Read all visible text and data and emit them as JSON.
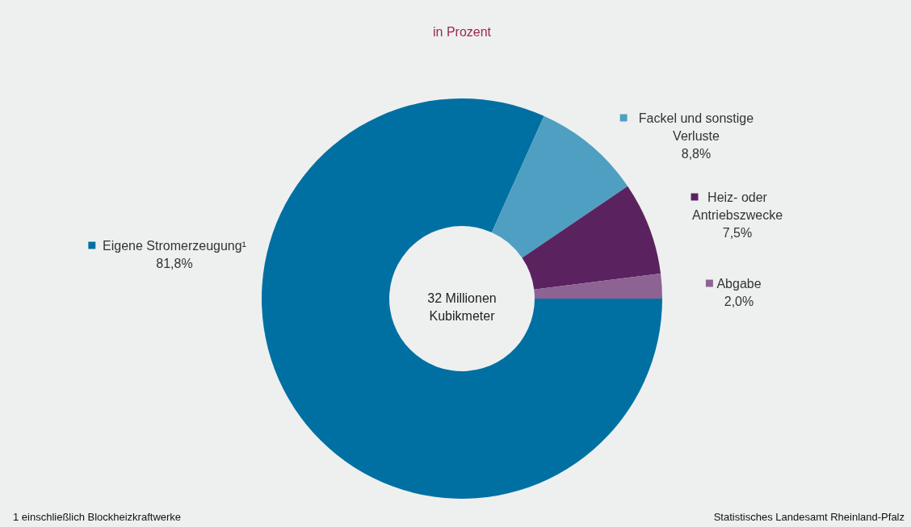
{
  "chart_data": {
    "type": "donut",
    "title": "in Prozent",
    "categories": [
      "Eigene Stromerzeugung¹",
      "Fackel und sonstige Verluste",
      "Heiz- oder Antriebszwecke",
      "Abgabe"
    ],
    "values": [
      81.8,
      8.8,
      7.5,
      2.0
    ],
    "value_labels": [
      "81,8%",
      "8,8%",
      "7,5%",
      "2,0%"
    ],
    "colors": [
      "#0070a3",
      "#4f9fc2",
      "#5b2260",
      "#8c6392"
    ],
    "annotations": [
      "32 Millionen Kubikmeter",
      "1 einschließlich Blockheizkraftwerke",
      "Statistisches Landesamt Rheinland-Pfalz"
    ],
    "legend": "top left"
  }
}
